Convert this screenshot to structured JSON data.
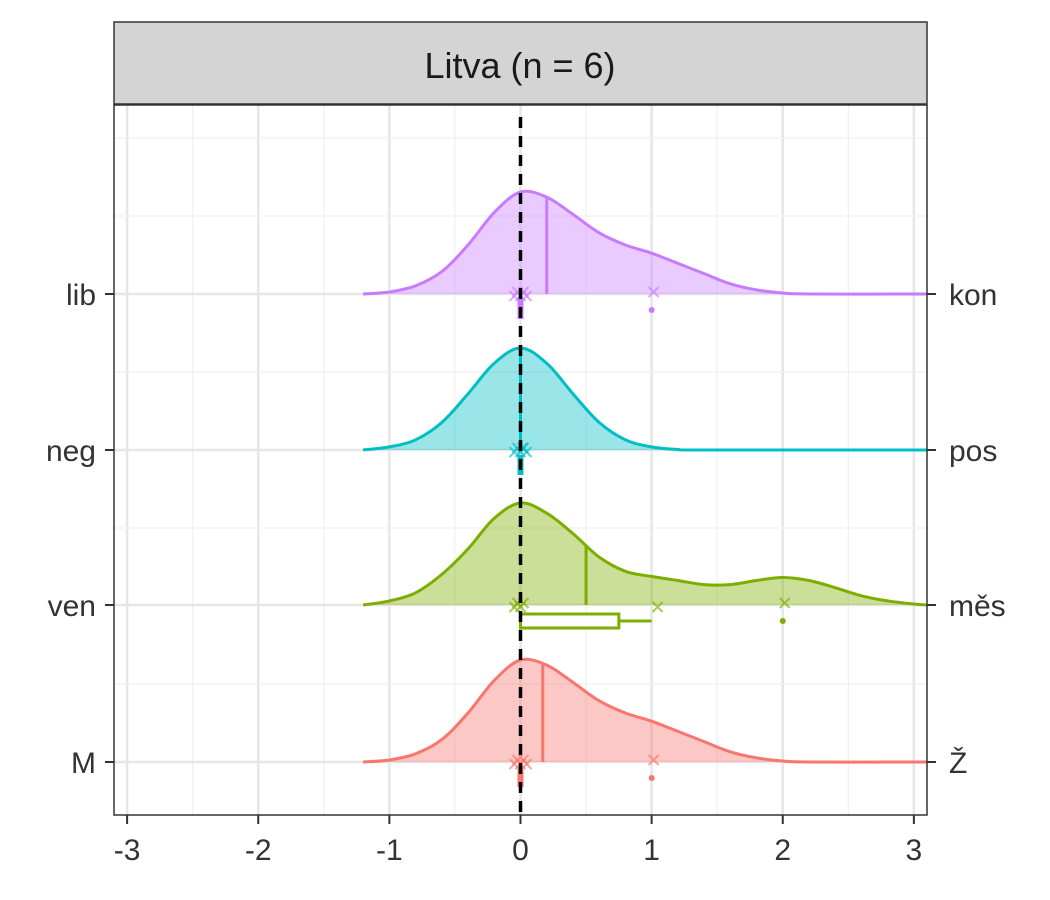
{
  "chart_data": {
    "type": "ridgeline",
    "panel_title": "Litva (n = 6)",
    "xlim": [
      -3.1,
      3.1
    ],
    "x_ticks": [
      "-3",
      "-2",
      "-1",
      "0",
      "1",
      "2",
      "3"
    ],
    "x_tick_values": [
      -3,
      -2,
      -1,
      0,
      1,
      2,
      3
    ],
    "reference_line_x": 0,
    "grid": true,
    "left_labels": [
      "lib",
      "neg",
      "ven",
      "M"
    ],
    "right_labels": [
      "kon",
      "pos",
      "měs",
      "Ž"
    ],
    "colors": {
      "lib-kon": "#C77CFF",
      "neg-pos": "#00BFC4",
      "ven-měs": "#7CAE00",
      "M-Ž": "#F8766D"
    },
    "series": [
      {
        "left": "lib",
        "right": "kon",
        "color": "#C77CFF",
        "mean": 0.2,
        "density": [
          [
            -1.2,
            0.0
          ],
          [
            -1.0,
            0.02
          ],
          [
            -0.8,
            0.08
          ],
          [
            -0.6,
            0.22
          ],
          [
            -0.4,
            0.48
          ],
          [
            -0.2,
            0.8
          ],
          [
            0.0,
            1.0
          ],
          [
            0.2,
            0.95
          ],
          [
            0.4,
            0.78
          ],
          [
            0.6,
            0.6
          ],
          [
            0.8,
            0.48
          ],
          [
            1.0,
            0.4
          ],
          [
            1.2,
            0.3
          ],
          [
            1.4,
            0.2
          ],
          [
            1.6,
            0.1
          ],
          [
            1.8,
            0.04
          ],
          [
            2.0,
            0.01
          ],
          [
            2.2,
            0.0
          ],
          [
            3.1,
            0.0
          ]
        ],
        "points": [
          0,
          0,
          0,
          0,
          0,
          1
        ],
        "box": {
          "min": 0,
          "q1": 0,
          "median": 0,
          "q3": 0,
          "max": 0
        }
      },
      {
        "left": "neg",
        "right": "pos",
        "color": "#00BFC4",
        "mean": 0.0,
        "density": [
          [
            -1.2,
            0.0
          ],
          [
            -1.0,
            0.03
          ],
          [
            -0.8,
            0.1
          ],
          [
            -0.6,
            0.27
          ],
          [
            -0.4,
            0.55
          ],
          [
            -0.2,
            0.85
          ],
          [
            0.0,
            1.0
          ],
          [
            0.2,
            0.85
          ],
          [
            0.4,
            0.55
          ],
          [
            0.6,
            0.27
          ],
          [
            0.8,
            0.1
          ],
          [
            1.0,
            0.03
          ],
          [
            1.2,
            0.005
          ],
          [
            1.4,
            0.0
          ],
          [
            3.1,
            0.0
          ]
        ],
        "points": [
          0,
          0,
          0,
          0,
          0,
          0
        ],
        "box": {
          "min": 0,
          "q1": 0,
          "median": 0,
          "q3": 0,
          "max": 0
        }
      },
      {
        "left": "ven",
        "right": "měs",
        "color": "#7CAE00",
        "mean": 0.5,
        "density": [
          [
            -1.2,
            0.0
          ],
          [
            -1.0,
            0.04
          ],
          [
            -0.8,
            0.12
          ],
          [
            -0.6,
            0.3
          ],
          [
            -0.4,
            0.55
          ],
          [
            -0.2,
            0.85
          ],
          [
            0.0,
            1.0
          ],
          [
            0.2,
            0.9
          ],
          [
            0.4,
            0.7
          ],
          [
            0.6,
            0.47
          ],
          [
            0.8,
            0.33
          ],
          [
            1.0,
            0.28
          ],
          [
            1.2,
            0.24
          ],
          [
            1.4,
            0.2
          ],
          [
            1.6,
            0.2
          ],
          [
            1.8,
            0.24
          ],
          [
            2.0,
            0.27
          ],
          [
            2.2,
            0.24
          ],
          [
            2.4,
            0.17
          ],
          [
            2.6,
            0.09
          ],
          [
            2.8,
            0.04
          ],
          [
            3.0,
            0.01
          ],
          [
            3.1,
            0.0
          ]
        ],
        "points": [
          0,
          0,
          0,
          0,
          1,
          2
        ],
        "box": {
          "min": 0,
          "q1": 0,
          "median": 0,
          "q3": 0.75,
          "max": 1
        }
      },
      {
        "left": "M",
        "right": "Ž",
        "color": "#F8766D",
        "mean": 0.17,
        "density": [
          [
            -1.2,
            0.0
          ],
          [
            -1.0,
            0.02
          ],
          [
            -0.8,
            0.08
          ],
          [
            -0.6,
            0.22
          ],
          [
            -0.4,
            0.48
          ],
          [
            -0.2,
            0.8
          ],
          [
            0.0,
            1.0
          ],
          [
            0.2,
            0.95
          ],
          [
            0.4,
            0.78
          ],
          [
            0.6,
            0.6
          ],
          [
            0.8,
            0.48
          ],
          [
            1.0,
            0.4
          ],
          [
            1.2,
            0.3
          ],
          [
            1.4,
            0.2
          ],
          [
            1.6,
            0.1
          ],
          [
            1.8,
            0.04
          ],
          [
            2.0,
            0.01
          ],
          [
            2.2,
            0.0
          ],
          [
            3.1,
            0.0
          ]
        ],
        "points": [
          0,
          0,
          0,
          0,
          0,
          1
        ],
        "box": {
          "min": 0,
          "q1": 0,
          "median": 0,
          "q3": 0,
          "max": 0
        }
      }
    ]
  }
}
